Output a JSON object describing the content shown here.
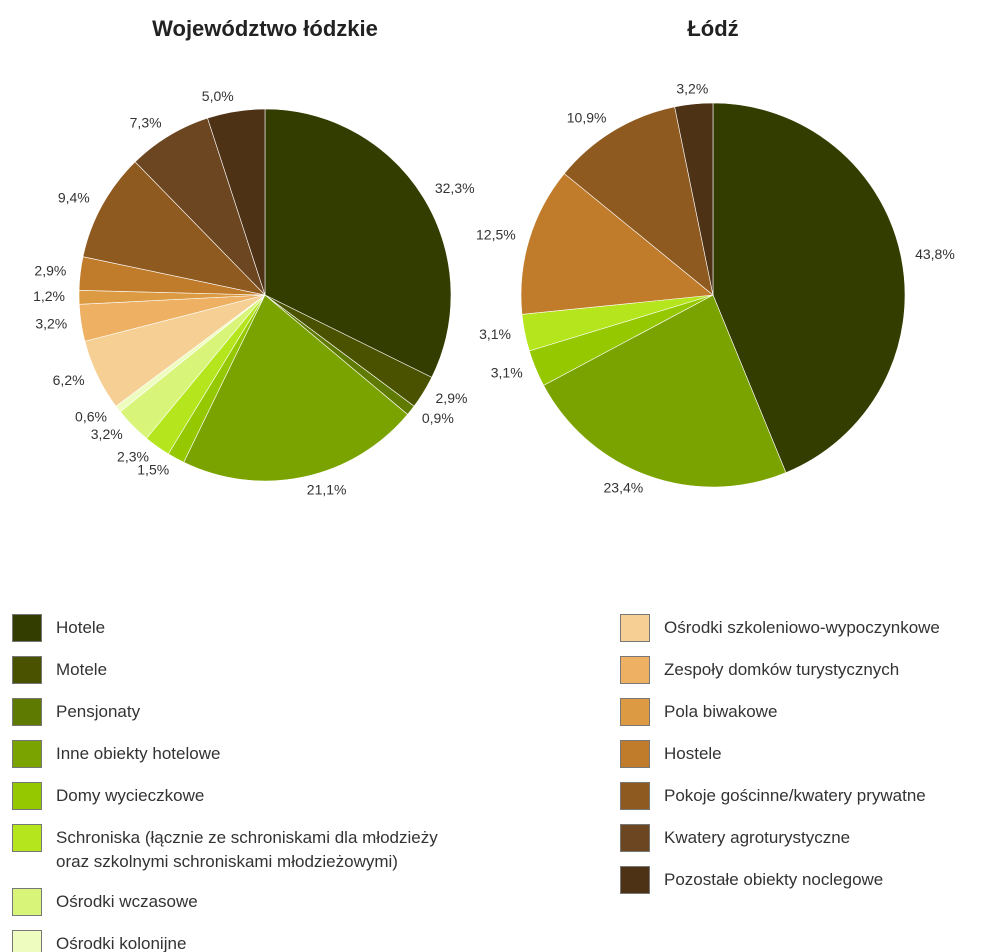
{
  "chart_data": [
    {
      "type": "pie",
      "title": "Województwo łódzkie",
      "categories": [
        "Hotele",
        "Motele",
        "Pensjonaty",
        "Inne obiekty hotelowe",
        "Domy wycieczkowe",
        "Schroniska",
        "Ośrodki wczasowe",
        "Ośrodki kolonijne",
        "Ośrodki szkoleniowo-wypoczynkowe",
        "Zespoły domków turystycznych",
        "Pola biwakowe",
        "Hostele",
        "Pokoje gościnne/kwatery prywatne",
        "Kwatery agroturystyczne",
        "Pozostałe obiekty noclegowe"
      ],
      "values": [
        32.3,
        2.9,
        0.9,
        21.1,
        1.5,
        2.3,
        3.2,
        0.6,
        6.2,
        3.2,
        1.2,
        2.9,
        9.4,
        7.3,
        5.0
      ],
      "value_labels": [
        "32,3%",
        "2,9%",
        "0,9%",
        "21,1%",
        "1,5%",
        "2,3%",
        "3,2%",
        "0,6%",
        "6,2%",
        "3,2%",
        "1,2%",
        "2,9%",
        "9,4%",
        "7,3%",
        "5,0%"
      ],
      "colors": [
        "#333d00",
        "#4a5200",
        "#5f7a00",
        "#7ba300",
        "#96c800",
        "#b5e61d",
        "#d8f57a",
        "#eefcc0",
        "#f5cf94",
        "#eeb163",
        "#dc9a42",
        "#c07c2a",
        "#8f5a20",
        "#6b4620",
        "#4e3215"
      ]
    },
    {
      "type": "pie",
      "title": "Łódź",
      "categories": [
        "Hotele",
        "Inne obiekty hotelowe",
        "Domy wycieczkowe",
        "Schroniska",
        "Hostele",
        "Pokoje gościnne/kwatery prywatne",
        "Pozostałe obiekty noclegowe"
      ],
      "values": [
        43.8,
        23.4,
        3.1,
        3.1,
        12.5,
        10.9,
        3.2
      ],
      "value_labels": [
        "43,8%",
        "23,4%",
        "3,1%",
        "3,1%",
        "12,5%",
        "10,9%",
        "3,2%"
      ],
      "colors": [
        "#333d00",
        "#7ba300",
        "#96c800",
        "#b5e61d",
        "#c07c2a",
        "#8f5a20",
        "#4e3215"
      ]
    }
  ],
  "legend": [
    {
      "name": "Hotele",
      "color": "#333d00"
    },
    {
      "name": "Motele",
      "color": "#4a5200"
    },
    {
      "name": "Pensjonaty",
      "color": "#5f7a00"
    },
    {
      "name": "Inne obiekty hotelowe",
      "color": "#7ba300"
    },
    {
      "name": "Domy wycieczkowe",
      "color": "#96c800"
    },
    {
      "name": "Schroniska (łącznie ze schroniskami dla młodzieży\n oraz szkolnymi schroniskami młodzieżowymi)",
      "color": "#b5e61d"
    },
    {
      "name": "Ośrodki wczasowe",
      "color": "#d8f57a"
    },
    {
      "name": "Ośrodki kolonijne",
      "color": "#eefcc0"
    },
    {
      "name": "Ośrodki szkoleniowo-wypoczynkowe",
      "color": "#f5cf94"
    },
    {
      "name": "Zespoły domków turystycznych",
      "color": "#eeb163"
    },
    {
      "name": "Pola biwakowe",
      "color": "#dc9a42"
    },
    {
      "name": "Hostele",
      "color": "#c07c2a"
    },
    {
      "name": "Pokoje gościnne/kwatery prywatne",
      "color": "#8f5a20"
    },
    {
      "name": "Kwatery agroturystyczne",
      "color": "#6b4620"
    },
    {
      "name": "Pozostałe obiekty noclegowe",
      "color": "#4e3215"
    }
  ]
}
